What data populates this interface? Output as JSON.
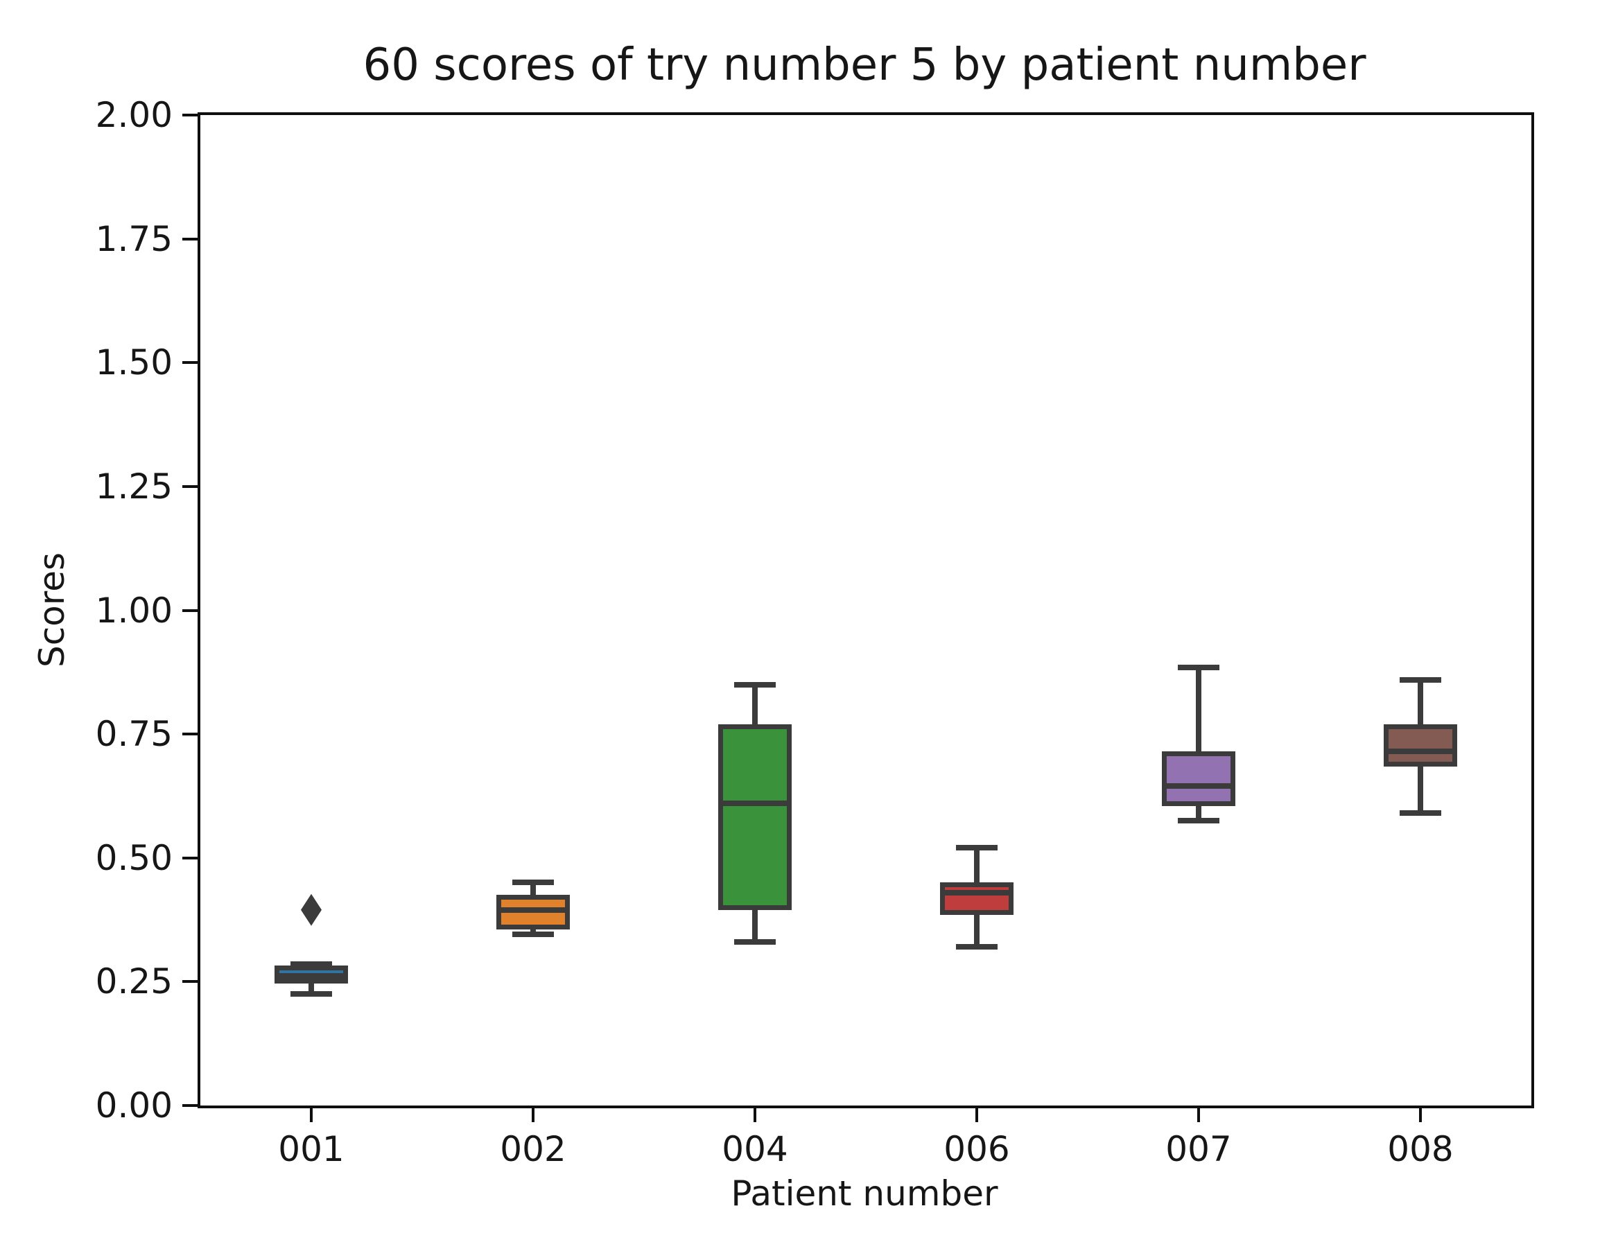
{
  "chart_data": {
    "type": "boxplot",
    "title": "60 scores of try number 5 by patient number",
    "xlabel": "Patient number",
    "ylabel": "Scores",
    "ylim": [
      0.0,
      2.0
    ],
    "ytick_values": [
      0.0,
      0.25,
      0.5,
      0.75,
      1.0,
      1.25,
      1.5,
      1.75,
      2.0
    ],
    "ytick_decimals": 2,
    "grid": false,
    "legend": "none",
    "categories": [
      "001",
      "002",
      "004",
      "006",
      "007",
      "008"
    ],
    "edge_color": "#3b3b3b",
    "spine_color": "#0f0f0f",
    "background_color": "#ffffff",
    "boxes": [
      {
        "category": "001",
        "color": "#3274a1",
        "whisker_low": 0.225,
        "q1": 0.247,
        "median": 0.262,
        "q3": 0.283,
        "whisker_high": 0.285,
        "outliers": [
          0.395
        ]
      },
      {
        "category": "002",
        "color": "#e1812c",
        "whisker_low": 0.345,
        "q1": 0.355,
        "median": 0.395,
        "q3": 0.425,
        "whisker_high": 0.45,
        "outliers": []
      },
      {
        "category": "004",
        "color": "#3a923a",
        "whisker_low": 0.33,
        "q1": 0.395,
        "median": 0.61,
        "q3": 0.77,
        "whisker_high": 0.85,
        "outliers": []
      },
      {
        "category": "006",
        "color": "#c03d3d",
        "whisker_low": 0.32,
        "q1": 0.385,
        "median": 0.43,
        "q3": 0.45,
        "whisker_high": 0.52,
        "outliers": []
      },
      {
        "category": "007",
        "color": "#9372b2",
        "whisker_low": 0.575,
        "q1": 0.605,
        "median": 0.645,
        "q3": 0.715,
        "whisker_high": 0.885,
        "outliers": []
      },
      {
        "category": "008",
        "color": "#845b53",
        "whisker_low": 0.59,
        "q1": 0.685,
        "median": 0.715,
        "q3": 0.77,
        "whisker_high": 0.86,
        "outliers": []
      }
    ]
  }
}
